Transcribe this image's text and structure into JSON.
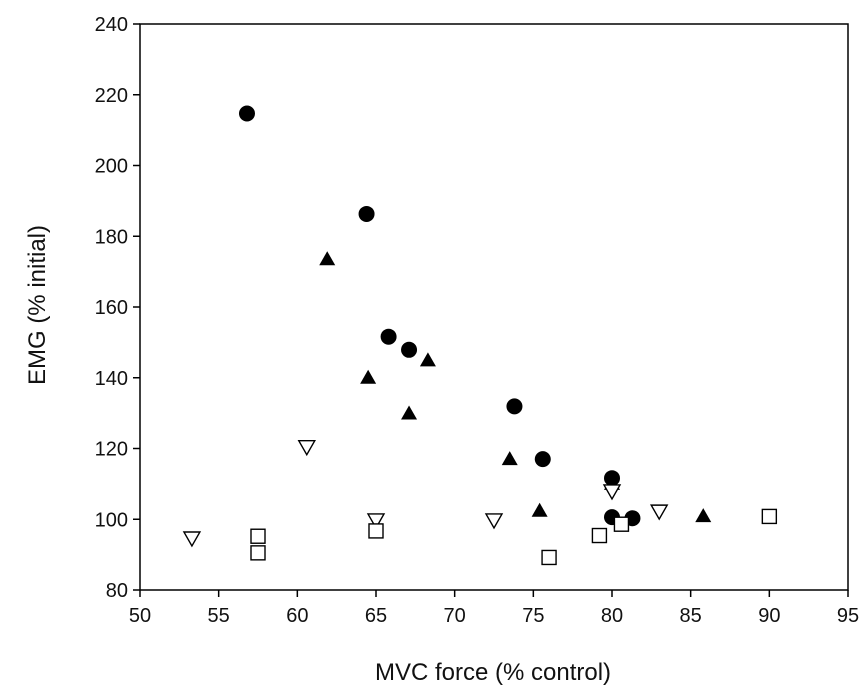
{
  "chart_data": {
    "type": "scatter",
    "xlabel": "MVC force (% control)",
    "ylabel": "EMG (% initial)",
    "xlim": [
      50,
      95
    ],
    "ylim": [
      80,
      240
    ],
    "xticks": [
      50,
      55,
      60,
      65,
      70,
      75,
      80,
      85,
      90,
      95
    ],
    "yticks": [
      80,
      100,
      120,
      140,
      160,
      180,
      200,
      220,
      240
    ],
    "grid": false,
    "legend": "none",
    "series": [
      {
        "marker": "filled-circle",
        "color": "#000000",
        "points": [
          {
            "x": 56.8,
            "y": 214.7
          },
          {
            "x": 64.4,
            "y": 186.3
          },
          {
            "x": 65.8,
            "y": 151.6
          },
          {
            "x": 67.1,
            "y": 147.9
          },
          {
            "x": 73.8,
            "y": 131.9
          },
          {
            "x": 75.6,
            "y": 117.0
          },
          {
            "x": 80.0,
            "y": 111.6
          },
          {
            "x": 80.0,
            "y": 100.6
          },
          {
            "x": 81.3,
            "y": 100.3
          }
        ]
      },
      {
        "marker": "filled-triangle-up",
        "color": "#000000",
        "points": [
          {
            "x": 61.9,
            "y": 173.5
          },
          {
            "x": 64.5,
            "y": 140.0
          },
          {
            "x": 67.1,
            "y": 129.9
          },
          {
            "x": 68.3,
            "y": 144.9
          },
          {
            "x": 73.5,
            "y": 117.0
          },
          {
            "x": 75.4,
            "y": 102.4
          },
          {
            "x": 80.0,
            "y": 110.0
          },
          {
            "x": 85.8,
            "y": 100.9
          }
        ]
      },
      {
        "marker": "open-triangle-down",
        "color": "#000000",
        "points": [
          {
            "x": 53.3,
            "y": 94.7
          },
          {
            "x": 60.6,
            "y": 120.5
          },
          {
            "x": 65.0,
            "y": 99.8
          },
          {
            "x": 72.5,
            "y": 99.8
          },
          {
            "x": 80.0,
            "y": 108.0
          },
          {
            "x": 83.0,
            "y": 102.3
          }
        ]
      },
      {
        "marker": "open-square",
        "color": "#000000",
        "points": [
          {
            "x": 57.5,
            "y": 95.2
          },
          {
            "x": 57.5,
            "y": 90.5
          },
          {
            "x": 65.0,
            "y": 96.7
          },
          {
            "x": 76.0,
            "y": 89.2
          },
          {
            "x": 79.2,
            "y": 95.4
          },
          {
            "x": 80.6,
            "y": 98.6
          },
          {
            "x": 90.0,
            "y": 100.8
          }
        ]
      }
    ]
  }
}
